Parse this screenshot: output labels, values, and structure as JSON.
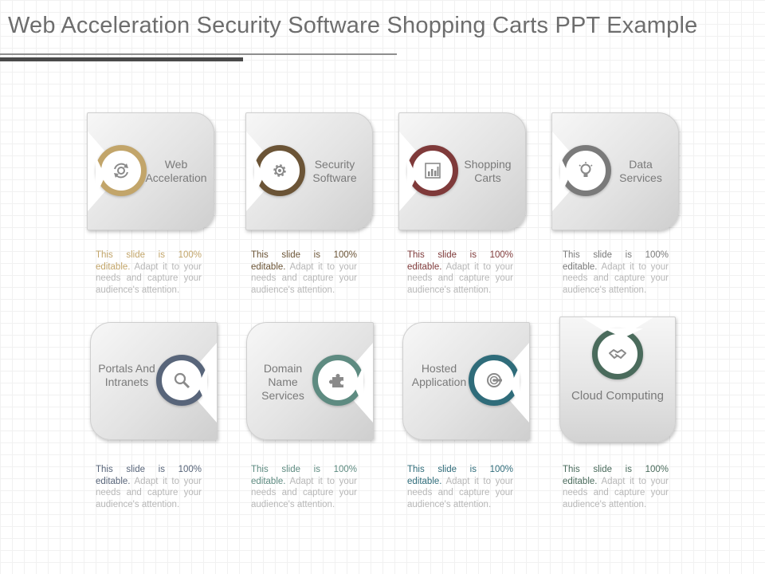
{
  "title": "Web Acceleration Security Software Shopping Carts PPT Example",
  "colors": {
    "gold": "#c2a56a",
    "brown": "#6b5436",
    "maroon": "#7f3a3a",
    "gray": "#7a7a7a",
    "slate": "#58657a",
    "sage": "#5e8b81",
    "teal": "#2f6c7a",
    "green": "#4a6b5c"
  },
  "items": [
    {
      "label": "Web Acceleration",
      "icon": "refresh-gear-icon",
      "color": "#c2a56a",
      "hl": "This slide is 100% editable.",
      "rest": " Adapt it to your needs and capture your audience's attention."
    },
    {
      "label": "Security Software",
      "icon": "gear-icon",
      "color": "#6b5436",
      "hl": "This slide is 100% editable.",
      "rest": " Adapt it to your needs and capture your audience's attention."
    },
    {
      "label": "Shopping Carts",
      "icon": "bar-chart-icon",
      "color": "#7f3a3a",
      "hl": "This slide is 100% editable.",
      "rest": " Adapt it to your needs and capture your audience's attention."
    },
    {
      "label": "Data Services",
      "icon": "lightbulb-icon",
      "color": "#7a7a7a",
      "hl": "This slide is 100% editable.",
      "rest": " Adapt it to your needs and capture your audience's attention."
    },
    {
      "label": "Portals And Intranets",
      "icon": "magnifier-icon",
      "color": "#58657a",
      "hl": "This slide is 100% editable.",
      "rest": " Adapt it to your needs and capture your audience's attention."
    },
    {
      "label": "Domain Name Services",
      "icon": "puzzle-icon",
      "color": "#5e8b81",
      "hl": "This slide is 100% editable.",
      "rest": " Adapt it to your needs and capture your audience's attention."
    },
    {
      "label": "Hosted Application",
      "icon": "target-icon",
      "color": "#2f6c7a",
      "hl": "This slide is 100% editable.",
      "rest": " Adapt it to your needs and capture your audience's attention."
    },
    {
      "label": "Cloud Computing",
      "icon": "handshake-icon",
      "color": "#4a6b5c",
      "hl": "This slide is 100% editable.",
      "rest": " Adapt it to your needs and capture your audience's attention."
    }
  ]
}
